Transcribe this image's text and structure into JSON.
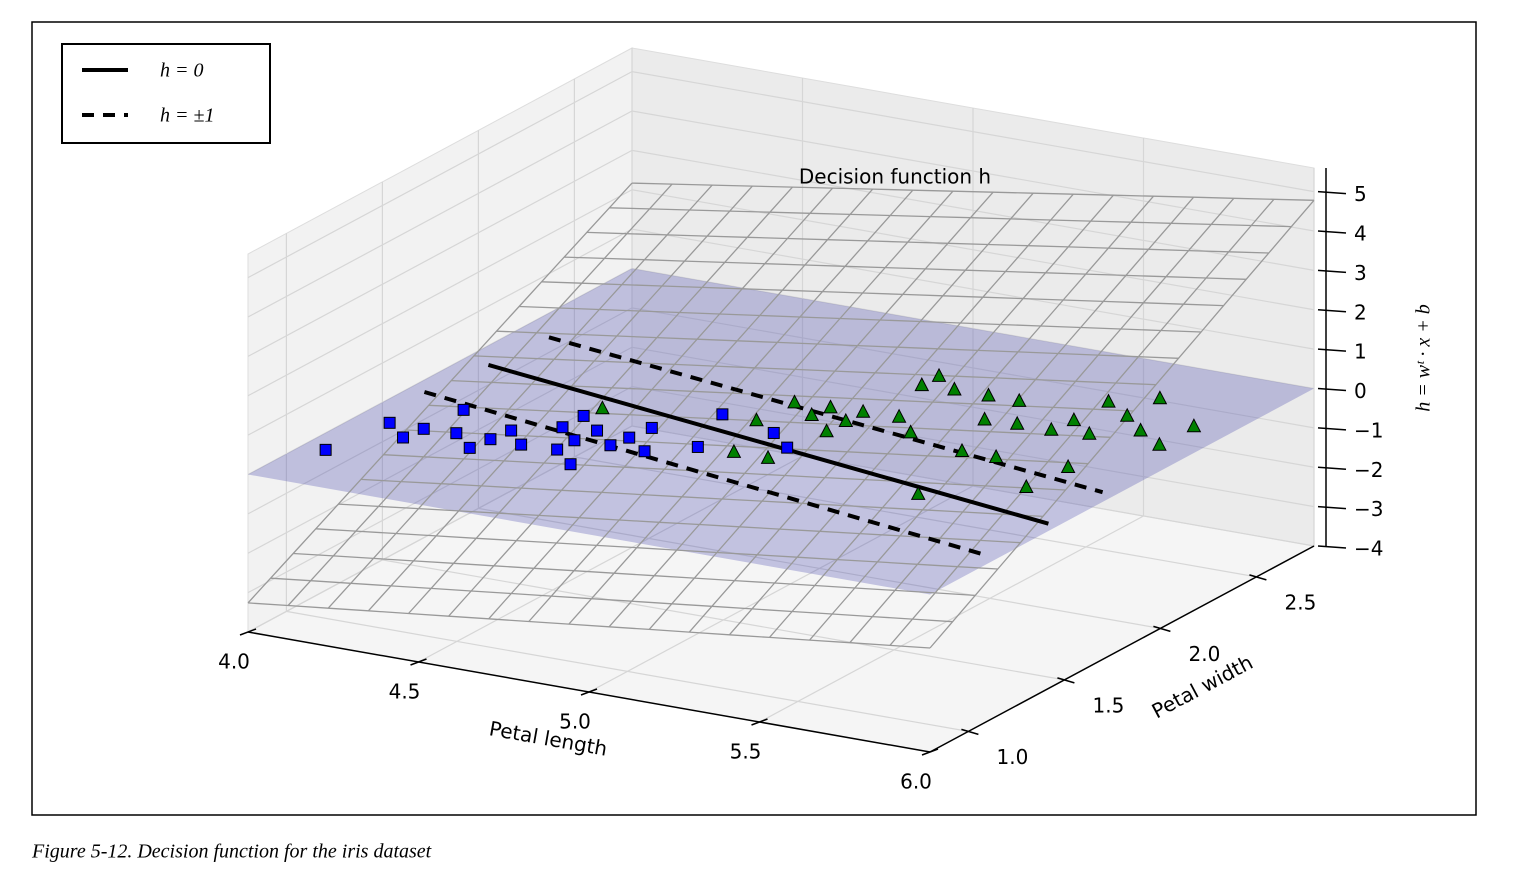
{
  "chart_data": {
    "type": "scatter3d",
    "title": "Decision function h",
    "xlabel": "Petal length",
    "ylabel": "Petal width",
    "zlabel": "h = wᵗ · x + b",
    "caption": "Figure 5-12. Decision function for the iris dataset",
    "xlim": [
      4,
      6
    ],
    "ylim": [
      0.8,
      2.8
    ],
    "zlim": [
      -4,
      5.6
    ],
    "xticks": [
      {
        "value": 4,
        "label": "4.0"
      },
      4.5,
      {
        "value": 5,
        "label": "5.0"
      },
      5.5,
      {
        "value": 6,
        "label": "6.0"
      }
    ],
    "yticks": [
      {
        "value": 1,
        "label": "1.0"
      },
      1.5,
      {
        "value": 2,
        "label": "2.0"
      },
      2.5
    ],
    "zticks": [
      {
        "value": -4,
        "label": "−4"
      },
      {
        "value": -3,
        "label": "−3"
      },
      {
        "value": -2,
        "label": "−2"
      },
      {
        "value": -1,
        "label": "−1"
      },
      0,
      1,
      2,
      3,
      4,
      5
    ],
    "grid": true,
    "legend": "upper left",
    "surface": {
      "color": "#999999",
      "x": [
        4,
        6
      ],
      "y": [
        0.8,
        2.8
      ],
      "z": [
        [
          -3.26,
          2.17
        ],
        [
          -1.36,
          4.78
        ]
      ]
    },
    "plane": {
      "z": 0,
      "color": "#3c3caa"
    },
    "lines": [
      {
        "name": "h = 0",
        "style": "solid",
        "color": "#000000",
        "segments": [
          {
            "x": [
              4.08,
              5.97
            ],
            "y": [
              1.91,
              1.47
            ]
          }
        ]
      },
      {
        "name": "h = ±1",
        "style": "dashed",
        "color": "#000000",
        "segments": [
          {
            "x": [
              4.1,
              5.96
            ],
            "y": [
              2.19,
              1.77
            ]
          },
          {
            "x": [
              4.05,
              5.96
            ],
            "y": [
              1.63,
              1.16
            ]
          }
        ]
      }
    ],
    "series": [
      {
        "marker": "square",
        "color": "#0000ff",
        "x": [
          4.07,
          4.1,
          4.19,
          4.2,
          4.29,
          4.21,
          4.38,
          4.39,
          4.4,
          4.48,
          4.58,
          4.5,
          4.67,
          4.58,
          4.5,
          4.59,
          4.68,
          4.69,
          4.78,
          4.7,
          4.88,
          4.8,
          4.99,
          5.08
        ],
        "y": [
          1.08,
          1.36,
          1.27,
          1.36,
          1.37,
          1.55,
          1.28,
          1.37,
          1.46,
          1.37,
          1.38,
          1.55,
          1.29,
          1.47,
          1.66,
          1.57,
          1.48,
          1.56,
          1.48,
          1.66,
          1.58,
          1.85,
          1.78,
          1.69
        ]
      },
      {
        "marker": "triangle",
        "color": "#008000",
        "x": [
          4.51,
          4.98,
          4.9,
          5.08,
          4.91,
          5.0,
          5.1,
          5.01,
          5.1,
          5.1,
          5.2,
          5.29,
          5.12,
          5.56,
          5.12,
          5.21,
          5.48,
          5.4,
          5.31,
          5.58,
          5.49,
          5.4,
          5.77,
          5.59,
          5.78,
          5.6,
          5.69,
          5.6,
          5.7,
          5.79,
          5.89,
          5.7,
          5.89
        ],
        "y": [
          1.74,
          1.59,
          1.85,
          1.59,
          2.03,
          1.96,
          1.86,
          2.04,
          1.96,
          2.05,
          2.06,
          1.96,
          2.32,
          1.52,
          2.41,
          2.33,
          1.89,
          2.15,
          2.33,
          1.89,
          2.16,
          2.33,
          1.71,
          2.16,
          1.91,
          2.26,
          2.18,
          2.44,
          2.36,
          2.27,
          2.19,
          2.53,
          2.37
        ]
      }
    ]
  }
}
